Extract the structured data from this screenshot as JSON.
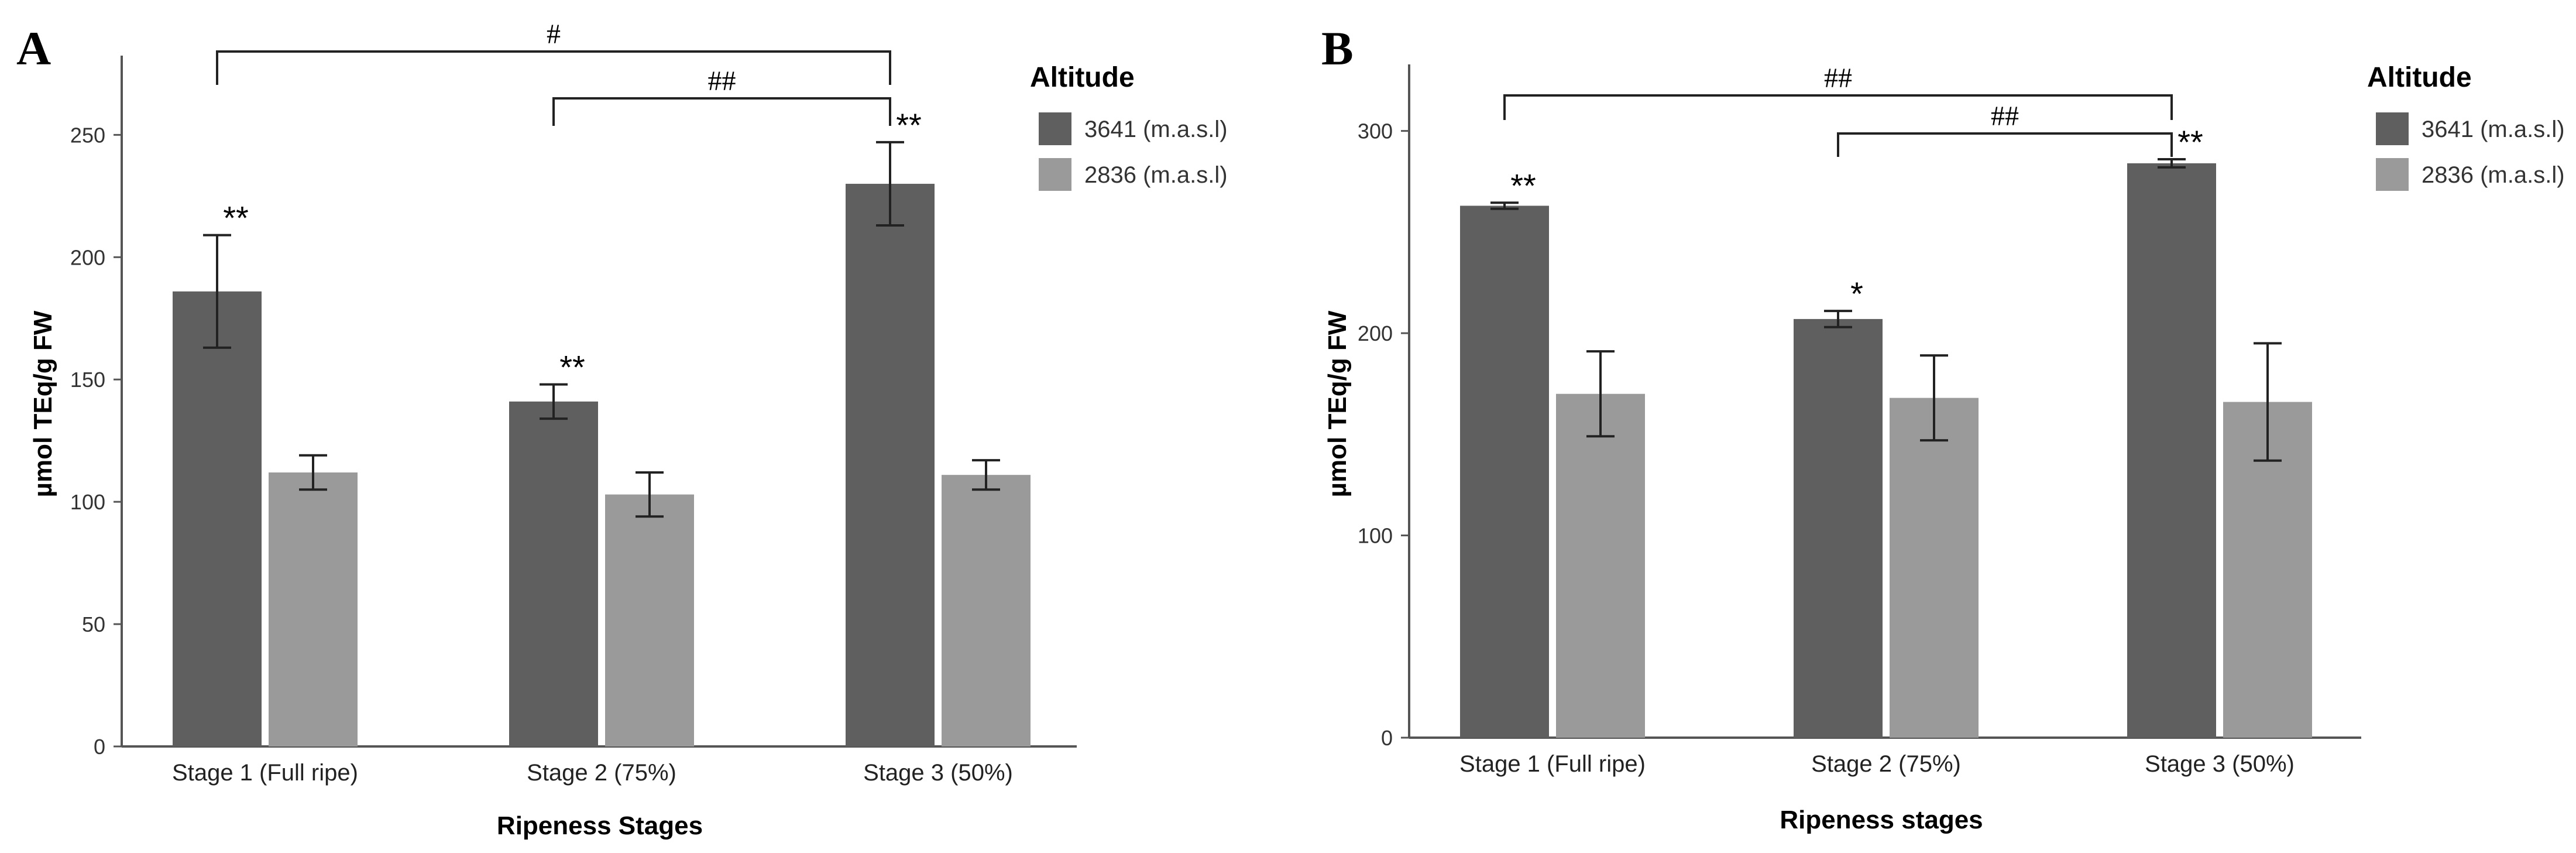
{
  "colors": {
    "dark": "#5f5f5f",
    "light": "#9a9a9a",
    "axis": "#555555",
    "text": "#000000"
  },
  "chart_data": [
    {
      "panel_label": "A",
      "type": "bar",
      "title": "",
      "xlabel": "Ripeness Stages",
      "ylabel": "µmol TEq/g FW",
      "ylim": [
        0,
        280
      ],
      "yticks": [
        0,
        50,
        100,
        150,
        200,
        250
      ],
      "categories": [
        "Stage 1 (Full ripe)",
        "Stage 2 (75%)",
        "Stage 3 (50%)"
      ],
      "legend_title": "Altitude",
      "legend_position": "right",
      "series": [
        {
          "name": "3641 (m.a.s.l)",
          "color": "#5f5f5f",
          "values": [
            186,
            141,
            230
          ],
          "errors": [
            23,
            7,
            17
          ],
          "significance": [
            "**",
            "**",
            "**"
          ]
        },
        {
          "name": "2836 (m.a.s.l)",
          "color": "#9a9a9a",
          "values": [
            112,
            103,
            111
          ],
          "errors": [
            7,
            9,
            6
          ],
          "significance": [
            "",
            "",
            ""
          ]
        }
      ],
      "comparisons": [
        {
          "from": 0,
          "to": 2,
          "label": "#",
          "level": 1
        },
        {
          "from": 1,
          "to": 2,
          "label": "##",
          "level": 0
        }
      ]
    },
    {
      "panel_label": "B",
      "type": "bar",
      "title": "",
      "xlabel": "Ripeness stages",
      "ylabel": "µmol TEq/g FW",
      "ylim": [
        0,
        330
      ],
      "yticks": [
        0,
        100,
        200,
        300
      ],
      "categories": [
        "Stage 1 (Full ripe)",
        "Stage 2 (75%)",
        "Stage 3 (50%)"
      ],
      "legend_title": "Altitude",
      "legend_position": "right",
      "series": [
        {
          "name": "3641 (m.a.s.l)",
          "color": "#5f5f5f",
          "values": [
            263,
            207,
            284
          ],
          "errors": [
            1.5,
            4,
            2
          ],
          "significance": [
            "**",
            "*",
            "**"
          ]
        },
        {
          "name": "2836 (m.a.s.l)",
          "color": "#9a9a9a",
          "values": [
            170,
            168,
            166
          ],
          "errors": [
            21,
            21,
            29
          ],
          "significance": [
            "",
            "",
            ""
          ]
        }
      ],
      "comparisons": [
        {
          "from": 0,
          "to": 2,
          "label": "##",
          "level": 1
        },
        {
          "from": 1,
          "to": 2,
          "label": "##",
          "level": 0
        }
      ]
    }
  ]
}
